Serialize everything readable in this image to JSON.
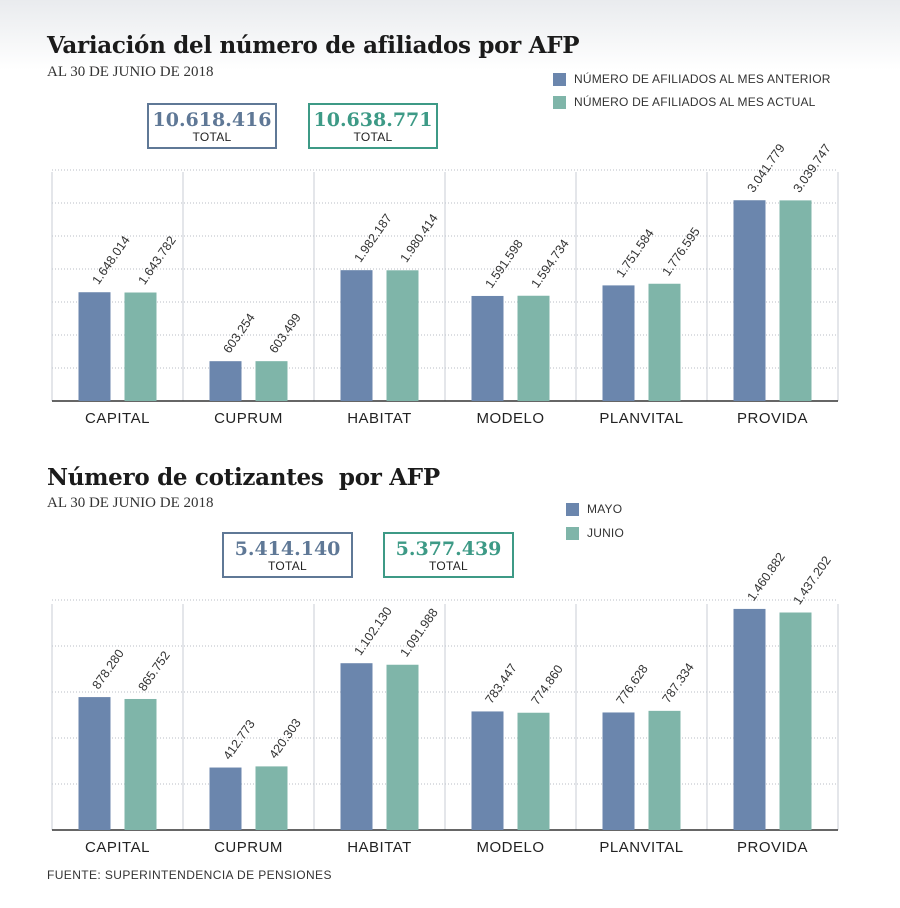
{
  "colors": {
    "previous": "#6b86ad",
    "current": "#7fb5a9",
    "box_previous": "#5f7896",
    "box_current": "#3d9a86"
  },
  "source": "FUENTE:  SUPERINTENDENCIA DE PENSIONES",
  "charts": [
    {
      "title": "Variación del número de afiliados por AFP",
      "subtitle": "AL 30 DE JUNIO DE 2018",
      "legend": [
        "NÚMERO DE AFILIADOS AL MES ANTERIOR",
        "NÚMERO DE AFILIADOS AL MES ACTUAL"
      ],
      "totals": [
        {
          "value": "10.618.416",
          "label": "TOTAL"
        },
        {
          "value": "10.638.771",
          "label": "TOTAL"
        }
      ]
    },
    {
      "title": "Número de cotizantes  por AFP",
      "subtitle": "AL 30 DE JUNIO DE 2018",
      "legend": [
        "MAYO",
        "JUNIO"
      ],
      "totals": [
        {
          "value": "5.414.140",
          "label": "TOTAL"
        },
        {
          "value": "5.377.439",
          "label": "TOTAL"
        }
      ]
    }
  ],
  "chart_data": [
    {
      "type": "bar",
      "title": "Variación del número de afiliados por AFP",
      "subtitle": "AL 30 DE JUNIO DE 2018",
      "categories": [
        "CAPITAL",
        "CUPRUM",
        "HABITAT",
        "MODELO",
        "PLANVITAL",
        "PROVIDA"
      ],
      "series": [
        {
          "name": "NÚMERO DE AFILIADOS AL MES ANTERIOR",
          "values": [
            1648014,
            603254,
            1982187,
            1591598,
            1751584,
            3041779
          ],
          "labels": [
            "1.648.014",
            "603.254",
            "1.982.187",
            "1.591.598",
            "1.751.584",
            "3.041.779"
          ]
        },
        {
          "name": "NÚMERO DE AFILIADOS AL MES ACTUAL",
          "values": [
            1643782,
            603499,
            1980414,
            1594734,
            1776595,
            3039747
          ],
          "labels": [
            "1.643.782",
            "603.499",
            "1.980.414",
            "1.594.734",
            "1.776.595",
            "3.039.747"
          ]
        }
      ],
      "ylim": [
        0,
        3500000
      ],
      "grid": true,
      "legend_position": "top-right"
    },
    {
      "type": "bar",
      "title": "Número de cotizantes  por AFP",
      "subtitle": "AL 30 DE JUNIO DE 2018",
      "categories": [
        "CAPITAL",
        "CUPRUM",
        "HABITAT",
        "MODELO",
        "PLANVITAL",
        "PROVIDA"
      ],
      "series": [
        {
          "name": "MAYO",
          "values": [
            878280,
            412773,
            1102130,
            783447,
            776628,
            1460882
          ],
          "labels": [
            "878.280",
            "412.773",
            "1.102.130",
            "783.447",
            "776.628",
            "1.460.882"
          ]
        },
        {
          "name": "JUNIO",
          "values": [
            865752,
            420303,
            1091988,
            774860,
            787334,
            1437202
          ],
          "labels": [
            "865.752",
            "420.303",
            "1.091.988",
            "774.860",
            "787.334",
            "1.437.202"
          ]
        }
      ],
      "ylim": [
        0,
        1500000
      ],
      "grid": true,
      "legend_position": "top-right"
    }
  ]
}
